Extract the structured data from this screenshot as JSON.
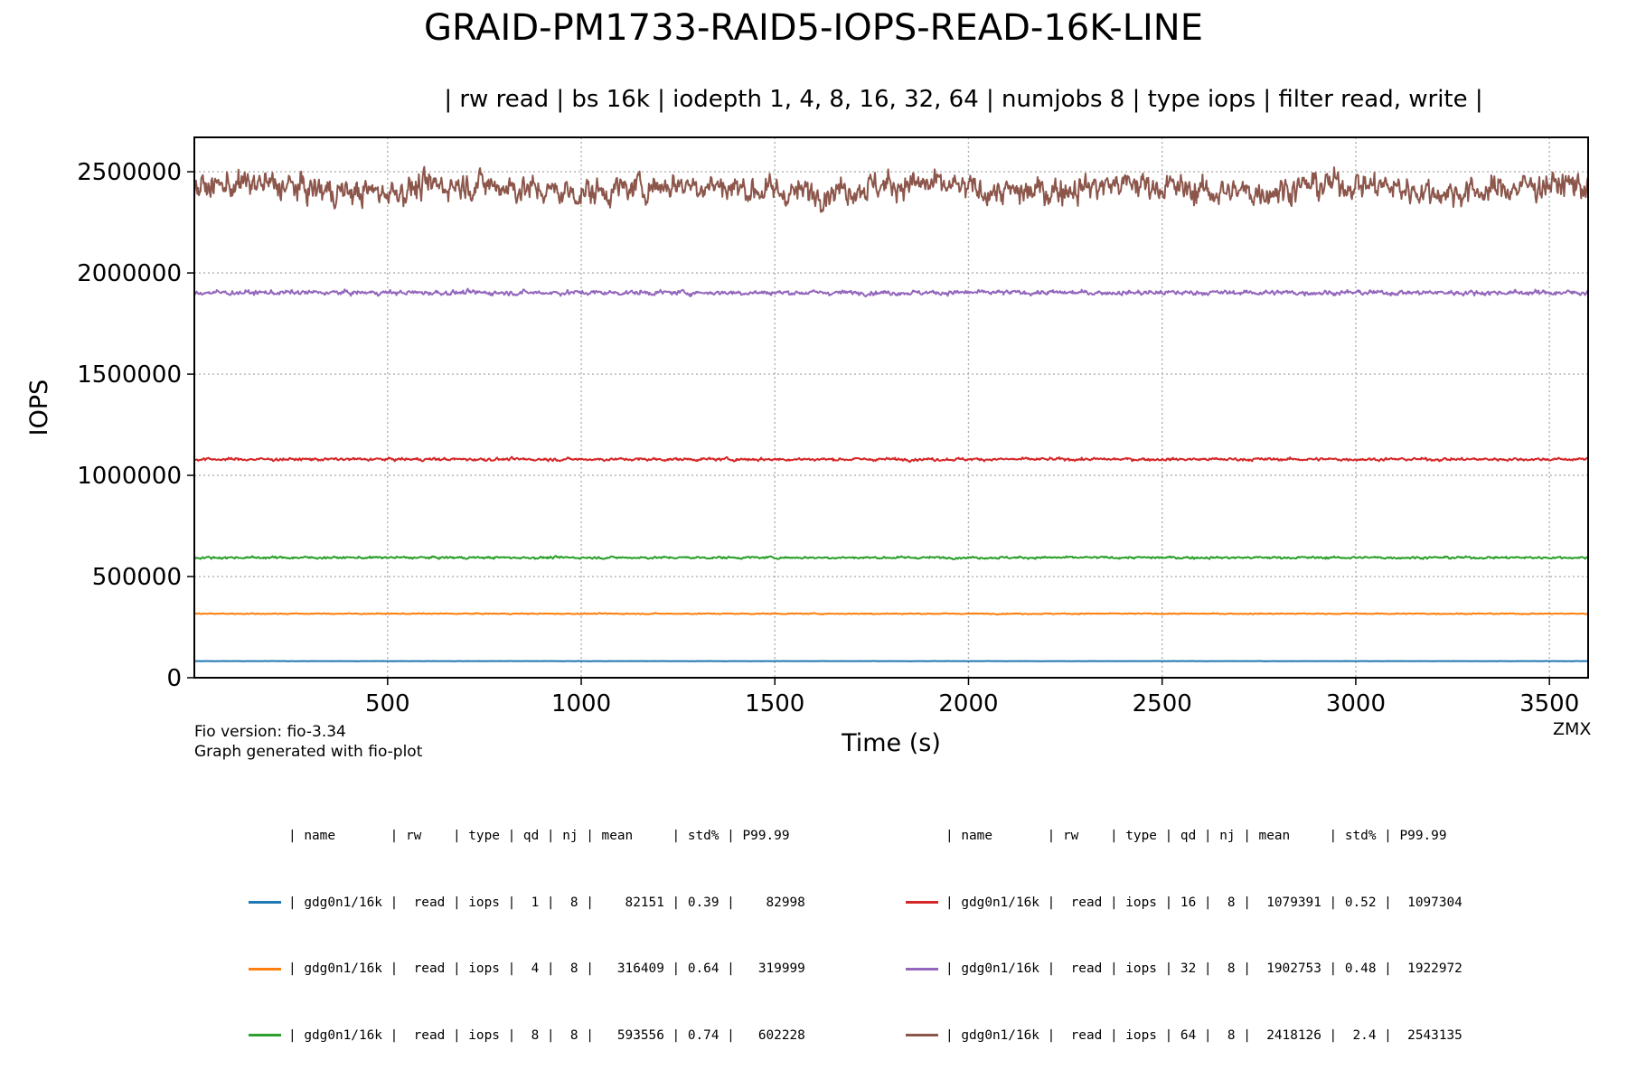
{
  "title": "GRAID-PM1733-RAID5-IOPS-READ-16K-LINE",
  "subtitle": "| rw read | bs 16k | iodepth 1, 4, 8, 16, 32, 64 | numjobs 8 | type iops | filter read, write |",
  "footnotes": [
    "Fio version: fio-3.34",
    "Graph generated with fio-plot"
  ],
  "watermark": "ZMX",
  "chart_data": {
    "type": "line",
    "title": "GRAID-PM1733-RAID5-IOPS-READ-16K-LINE",
    "xlabel": "Time (s)",
    "ylabel": "IOPS",
    "xlim": [
      1,
      3600
    ],
    "ylim": [
      0,
      2670000
    ],
    "xticks": [
      500,
      1000,
      1500,
      2000,
      2500,
      3000,
      3500
    ],
    "yticks": [
      0,
      500000,
      1000000,
      1500000,
      2000000,
      2500000
    ],
    "grid": true,
    "series": [
      {
        "name": "gdg0n1/16k qd 1",
        "color": "#1f77b4",
        "mean": 82151,
        "std_pct": 0.39,
        "x": [
          1,
          3600
        ],
        "y": [
          82151,
          82151
        ]
      },
      {
        "name": "gdg0n1/16k qd 4",
        "color": "#ff7f0e",
        "mean": 316409,
        "std_pct": 0.64,
        "x": [
          1,
          3600
        ],
        "y": [
          316409,
          316409
        ]
      },
      {
        "name": "gdg0n1/16k qd 8",
        "color": "#2ca02c",
        "mean": 593556,
        "std_pct": 0.74,
        "x": [
          1,
          3600
        ],
        "y": [
          593556,
          593556
        ]
      },
      {
        "name": "gdg0n1/16k qd 16",
        "color": "#d62728",
        "mean": 1079391,
        "std_pct": 0.52,
        "x": [
          1,
          3600
        ],
        "y": [
          1079391,
          1079391
        ]
      },
      {
        "name": "gdg0n1/16k qd 32",
        "color": "#9467bd",
        "mean": 1902753,
        "std_pct": 0.48,
        "x": [
          1,
          3600
        ],
        "y": [
          1902753,
          1902753
        ]
      },
      {
        "name": "gdg0n1/16k qd 64",
        "color": "#8c564b",
        "mean": 2418126,
        "std_pct": 2.4,
        "x": [
          1,
          3600
        ],
        "y": [
          2418126,
          2418126
        ]
      }
    ]
  },
  "legend": {
    "left": {
      "header": "| name       | rw    | type | qd | nj | mean     | std% | P99.99",
      "rows": [
        "| gdg0n1/16k |  read | iops |  1 |  8 |    82151 | 0.39 |    82998",
        "| gdg0n1/16k |  read | iops |  4 |  8 |   316409 | 0.64 |   319999",
        "| gdg0n1/16k |  read | iops |  8 |  8 |   593556 | 0.74 |   602228"
      ],
      "colors": [
        "#1f77b4",
        "#ff7f0e",
        "#2ca02c"
      ]
    },
    "right": {
      "header": "| name       | rw    | type | qd | nj | mean     | std% | P99.99",
      "rows": [
        "| gdg0n1/16k |  read | iops | 16 |  8 |  1079391 | 0.52 |  1097304",
        "| gdg0n1/16k |  read | iops | 32 |  8 |  1902753 | 0.48 |  1922972",
        "| gdg0n1/16k |  read | iops | 64 |  8 |  2418126 |  2.4 |  2543135"
      ],
      "colors": [
        "#d62728",
        "#9467bd",
        "#8c564b"
      ]
    }
  }
}
